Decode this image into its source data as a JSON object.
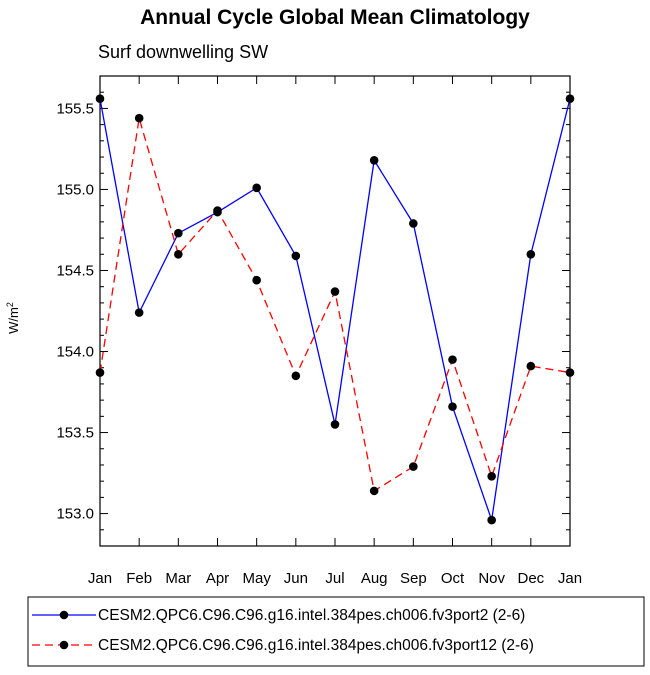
{
  "chart_data": {
    "type": "line",
    "title": "Annual Cycle Global Mean Climatology",
    "subtitle": "Surf downwelling SW",
    "ylabel": "W/m",
    "ylabel_sup": "2",
    "xlabel": "",
    "categories": [
      "Jan",
      "Feb",
      "Mar",
      "Apr",
      "May",
      "Jun",
      "Jul",
      "Aug",
      "Sep",
      "Oct",
      "Nov",
      "Dec",
      "Jan"
    ],
    "ylim": [
      152.8,
      155.7
    ],
    "yticks": [
      153.0,
      153.5,
      154.0,
      154.5,
      155.0,
      155.5
    ],
    "ytick_labels": [
      "153.0",
      "153.5",
      "154.0",
      "154.5",
      "155.0",
      "155.5"
    ],
    "series": [
      {
        "name": "CESM2.QPC6.C96.C96.g16.intel.384pes.ch006.fv3port2 (2-6)",
        "color": "#0000ff",
        "dash": "solid",
        "values": [
          155.56,
          154.24,
          154.73,
          154.86,
          155.01,
          154.59,
          153.55,
          155.18,
          154.79,
          153.66,
          152.96,
          154.6,
          155.56
        ]
      },
      {
        "name": "CESM2.QPC6.C96.C96.g16.intel.384pes.ch006.fv3port12 (2-6)",
        "color": "#ff0000",
        "dash": "dashed",
        "values": [
          153.87,
          155.44,
          154.6,
          154.87,
          154.44,
          153.85,
          154.37,
          153.14,
          153.29,
          153.95,
          153.23,
          153.91,
          153.87
        ]
      }
    ],
    "legend_position": "bottom"
  }
}
